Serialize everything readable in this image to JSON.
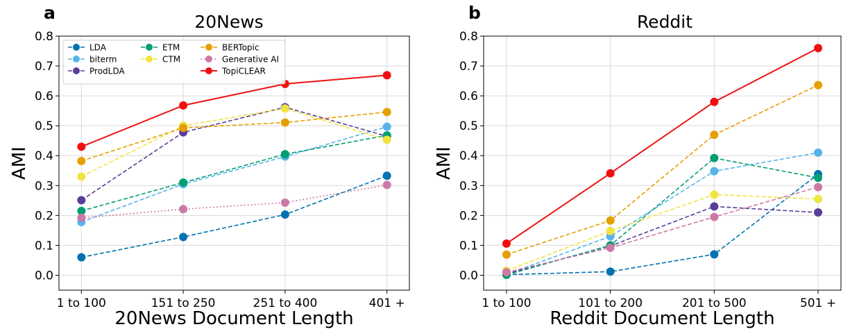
{
  "chart_data": [
    {
      "type": "line",
      "panel_label": "a",
      "title": "20News",
      "xlabel": "20News Document Length",
      "ylabel": "AMI",
      "categories": [
        "1 to 100",
        "151 to 250",
        "251 to 400",
        "401 +"
      ],
      "ylim": [
        -0.05,
        0.8
      ],
      "yticks": [
        "0.0",
        "0.1",
        "0.2",
        "0.3",
        "0.4",
        "0.5",
        "0.6",
        "0.7",
        "0.8"
      ],
      "grid": true,
      "legend_position": "top-left",
      "series": [
        {
          "name": "LDA",
          "color": "#0072b2",
          "dash": "dashed",
          "values": [
            0.06,
            0.128,
            0.203,
            0.333
          ]
        },
        {
          "name": "biterm",
          "color": "#56b4e9",
          "dash": "dashed",
          "values": [
            0.178,
            0.305,
            0.397,
            0.497
          ]
        },
        {
          "name": "ProdLDA",
          "color": "#5a3d99",
          "dash": "dashed",
          "values": [
            0.251,
            0.478,
            0.562,
            0.465
          ]
        },
        {
          "name": "ETM",
          "color": "#009e73",
          "dash": "dashed",
          "values": [
            0.215,
            0.31,
            0.405,
            0.468
          ]
        },
        {
          "name": "CTM",
          "color": "#f0e442",
          "dash": "dashed",
          "values": [
            0.33,
            0.5,
            0.558,
            0.453
          ]
        },
        {
          "name": "BERTopic",
          "color": "#e69f00",
          "dash": "dashed",
          "values": [
            0.382,
            0.493,
            0.511,
            0.546
          ]
        },
        {
          "name": "Generative AI",
          "color": "#cc79a7",
          "dash": "dotted",
          "values": [
            0.192,
            0.221,
            0.243,
            0.302
          ]
        },
        {
          "name": "TopiCLEAR",
          "color": "#ee1111",
          "dash": "solid",
          "values": [
            0.43,
            0.568,
            0.64,
            0.669
          ]
        }
      ]
    },
    {
      "type": "line",
      "panel_label": "b",
      "title": "Reddit",
      "xlabel": "Reddit Document Length",
      "ylabel": "AMI",
      "categories": [
        "1 to 100",
        "101 to 200",
        "201 to 500",
        "501 +"
      ],
      "ylim": [
        -0.05,
        0.8
      ],
      "yticks": [
        "0.0",
        "0.1",
        "0.2",
        "0.3",
        "0.4",
        "0.5",
        "0.6",
        "0.7",
        "0.8"
      ],
      "grid": true,
      "series": [
        {
          "name": "LDA",
          "color": "#0072b2",
          "dash": "dashed",
          "values": [
            0.002,
            0.012,
            0.07,
            0.338
          ]
        },
        {
          "name": "biterm",
          "color": "#56b4e9",
          "dash": "dashed",
          "values": [
            0.003,
            0.13,
            0.348,
            0.41
          ]
        },
        {
          "name": "ProdLDA",
          "color": "#5a3d99",
          "dash": "dashed",
          "values": [
            0.005,
            0.098,
            0.23,
            0.21
          ]
        },
        {
          "name": "ETM",
          "color": "#009e73",
          "dash": "dashed",
          "values": [
            0.001,
            0.1,
            0.392,
            0.326
          ]
        },
        {
          "name": "CTM",
          "color": "#f0e442",
          "dash": "dashed",
          "values": [
            0.015,
            0.148,
            0.27,
            0.255
          ]
        },
        {
          "name": "BERTopic",
          "color": "#e69f00",
          "dash": "dashed",
          "values": [
            0.069,
            0.183,
            0.47,
            0.636
          ]
        },
        {
          "name": "Generative AI",
          "color": "#cc79a7",
          "dash": "dashed",
          "values": [
            0.01,
            0.092,
            0.195,
            0.295
          ]
        },
        {
          "name": "TopiCLEAR",
          "color": "#ee1111",
          "dash": "solid",
          "values": [
            0.106,
            0.341,
            0.58,
            0.76
          ]
        }
      ]
    }
  ]
}
